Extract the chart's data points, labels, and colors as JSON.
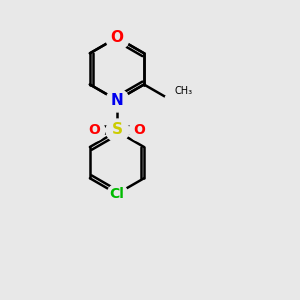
{
  "bg_color": "#e8e8e8",
  "bond_color": "#000000",
  "bond_width": 1.8,
  "dbo": 0.055,
  "atom_colors": {
    "O": "#ff0000",
    "N": "#0000ee",
    "S": "#cccc00",
    "Cl": "#00bb00"
  }
}
